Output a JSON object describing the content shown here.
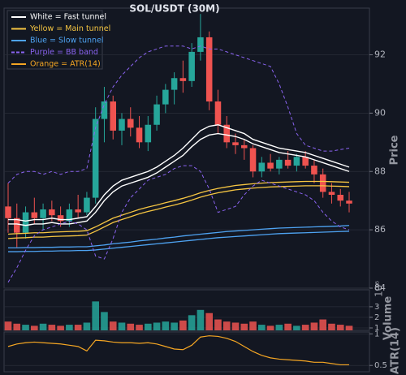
{
  "chart_data": [
    {
      "type": "candlestick",
      "title": "SOL/USDT (30M)",
      "ylabel": "Price",
      "ylim": [
        84,
        93.6
      ],
      "yticks": [
        84,
        86,
        88,
        90,
        92
      ],
      "grid": true,
      "up_color": "#26a69a",
      "down_color": "#ef5350",
      "open": [
        86.8,
        86.4,
        85.9,
        86.6,
        86.4,
        86.7,
        86.5,
        86.3,
        86.7,
        86.6,
        87.1,
        89.8,
        90.4,
        89.4,
        89.8,
        89.5,
        89.0,
        89.6,
        90.3,
        90.8,
        91.2,
        91.1,
        92.1,
        92.6,
        90.4,
        89.6,
        89.0,
        88.9,
        88.8,
        88.0,
        88.3,
        88.1,
        88.4,
        88.2,
        88.5,
        88.2,
        87.9,
        87.3,
        87.2,
        87.0
      ],
      "high": [
        87.6,
        86.9,
        86.8,
        87.1,
        86.9,
        87.0,
        86.8,
        86.9,
        87.2,
        87.3,
        90.2,
        90.9,
        90.6,
        90.0,
        90.2,
        89.9,
        89.9,
        90.6,
        91.0,
        91.4,
        91.8,
        92.4,
        93.4,
        92.8,
        90.8,
        89.9,
        89.3,
        89.1,
        88.9,
        88.5,
        88.6,
        88.5,
        88.7,
        88.6,
        88.7,
        88.4,
        88.1,
        87.6,
        87.4,
        87.3
      ],
      "low": [
        85.9,
        85.4,
        85.7,
        86.2,
        86.0,
        86.3,
        86.1,
        86.1,
        86.4,
        86.5,
        86.9,
        89.0,
        89.1,
        88.9,
        89.2,
        88.8,
        88.7,
        89.4,
        90.0,
        90.3,
        90.7,
        90.9,
        91.8,
        90.1,
        89.3,
        88.8,
        88.6,
        88.4,
        87.8,
        87.8,
        88.0,
        87.9,
        88.1,
        88.0,
        88.1,
        87.6,
        87.1,
        86.9,
        86.8,
        86.6
      ],
      "close": [
        86.4,
        85.9,
        86.6,
        86.4,
        86.7,
        86.5,
        86.3,
        86.7,
        86.6,
        87.1,
        89.8,
        90.4,
        89.4,
        89.8,
        89.5,
        89.0,
        89.6,
        90.3,
        90.8,
        91.2,
        91.1,
        92.1,
        92.6,
        90.4,
        89.6,
        89.0,
        88.9,
        88.8,
        88.0,
        88.3,
        88.1,
        88.4,
        88.2,
        88.5,
        88.2,
        87.9,
        87.3,
        87.2,
        87.0,
        86.9
      ],
      "lines": [
        {
          "color": "#ffffff",
          "width": 1.4,
          "values": [
            86.35,
            86.35,
            86.3,
            86.35,
            86.35,
            86.4,
            86.35,
            86.35,
            86.4,
            86.45,
            86.8,
            87.2,
            87.5,
            87.7,
            87.8,
            87.9,
            88.0,
            88.15,
            88.35,
            88.55,
            88.8,
            89.1,
            89.4,
            89.55,
            89.6,
            89.5,
            89.4,
            89.3,
            89.1,
            89.0,
            88.9,
            88.8,
            88.75,
            88.7,
            88.65,
            88.55,
            88.45,
            88.35,
            88.25,
            88.15
          ]
        },
        {
          "color": "#ffffff",
          "width": 1.4,
          "values": [
            86.2,
            86.2,
            86.15,
            86.2,
            86.2,
            86.25,
            86.2,
            86.2,
            86.25,
            86.3,
            86.6,
            87.0,
            87.3,
            87.5,
            87.6,
            87.7,
            87.8,
            87.95,
            88.15,
            88.35,
            88.55,
            88.85,
            89.1,
            89.25,
            89.3,
            89.25,
            89.2,
            89.1,
            88.95,
            88.85,
            88.75,
            88.65,
            88.6,
            88.55,
            88.5,
            88.4,
            88.3,
            88.2,
            88.1,
            88.0
          ]
        },
        {
          "color": "#f5c542",
          "width": 1.3,
          "values": [
            85.85,
            85.87,
            85.88,
            85.9,
            85.9,
            85.92,
            85.93,
            85.94,
            85.95,
            85.97,
            86.1,
            86.25,
            86.4,
            86.5,
            86.6,
            86.7,
            86.78,
            86.85,
            86.93,
            87.0,
            87.08,
            87.17,
            87.27,
            87.35,
            87.42,
            87.47,
            87.52,
            87.55,
            87.58,
            87.6,
            87.62,
            87.63,
            87.64,
            87.65,
            87.66,
            87.66,
            87.66,
            87.65,
            87.64,
            87.63
          ]
        },
        {
          "color": "#f5c542",
          "width": 1.3,
          "values": [
            85.7,
            85.72,
            85.73,
            85.75,
            85.75,
            85.77,
            85.78,
            85.79,
            85.8,
            85.82,
            85.95,
            86.1,
            86.25,
            86.35,
            86.45,
            86.55,
            86.63,
            86.7,
            86.78,
            86.85,
            86.93,
            87.02,
            87.12,
            87.2,
            87.27,
            87.32,
            87.37,
            87.4,
            87.43,
            87.45,
            87.47,
            87.48,
            87.49,
            87.5,
            87.51,
            87.51,
            87.51,
            87.5,
            87.49,
            87.48
          ]
        },
        {
          "color": "#4ea3f2",
          "width": 1.3,
          "values": [
            85.38,
            85.38,
            85.39,
            85.39,
            85.4,
            85.4,
            85.41,
            85.41,
            85.42,
            85.42,
            85.45,
            85.48,
            85.52,
            85.55,
            85.58,
            85.62,
            85.65,
            85.68,
            85.72,
            85.75,
            85.79,
            85.82,
            85.85,
            85.88,
            85.91,
            85.94,
            85.96,
            85.98,
            86.0,
            86.02,
            86.04,
            86.06,
            86.07,
            86.08,
            86.09,
            86.1,
            86.11,
            86.12,
            86.13,
            86.15
          ]
        },
        {
          "color": "#4ea3f2",
          "width": 1.3,
          "values": [
            85.25,
            85.25,
            85.26,
            85.26,
            85.27,
            85.27,
            85.28,
            85.28,
            85.29,
            85.29,
            85.31,
            85.34,
            85.37,
            85.4,
            85.43,
            85.46,
            85.49,
            85.52,
            85.55,
            85.58,
            85.61,
            85.64,
            85.67,
            85.7,
            85.73,
            85.75,
            85.77,
            85.79,
            85.81,
            85.83,
            85.85,
            85.87,
            85.88,
            85.89,
            85.9,
            85.91,
            85.92,
            85.93,
            85.94,
            85.95
          ]
        },
        {
          "color": "#8a63f0",
          "width": 1,
          "dash": true,
          "values": [
            87.6,
            87.9,
            88.0,
            88.0,
            87.9,
            88.0,
            87.9,
            88.0,
            88.0,
            88.1,
            89.5,
            90.3,
            90.9,
            91.3,
            91.6,
            91.9,
            92.1,
            92.2,
            92.3,
            92.3,
            92.3,
            92.2,
            92.3,
            92.2,
            92.2,
            92.1,
            92.0,
            91.9,
            91.8,
            91.7,
            91.6,
            91.0,
            90.2,
            89.3,
            88.9,
            88.8,
            88.7,
            88.7,
            88.75,
            88.8
          ]
        },
        {
          "color": "#8a63f0",
          "width": 1,
          "dash": true,
          "values": [
            84.2,
            84.7,
            85.3,
            85.8,
            86.0,
            86.1,
            86.2,
            86.3,
            86.2,
            86.0,
            85.1,
            85.0,
            85.7,
            86.6,
            87.1,
            87.4,
            87.7,
            87.8,
            87.9,
            88.1,
            88.2,
            88.2,
            88.0,
            87.4,
            86.6,
            86.7,
            86.8,
            87.2,
            87.5,
            87.7,
            87.6,
            87.5,
            87.4,
            87.3,
            87.2,
            87.0,
            86.6,
            86.3,
            86.1,
            86.0
          ]
        }
      ],
      "legend": [
        {
          "label": "White = Fast tunnel",
          "color": "#ffffff"
        },
        {
          "label": "Yellow = Main tunnel",
          "color": "#f5c542"
        },
        {
          "label": "Blue = Slow tunnel",
          "color": "#4ea3f2"
        },
        {
          "label": "Purple = BB band",
          "color": "#8a63f0",
          "dash": true
        },
        {
          "label": "Orange = ATR(14)",
          "color": "#f5a623"
        }
      ]
    },
    {
      "type": "bar",
      "ylabel": "Volume",
      "offset_label": "10⁶",
      "ylim": [
        0.77,
        4.6
      ],
      "yticks": [
        1,
        2,
        3
      ],
      "grid": true,
      "values": [
        1.6,
        1.4,
        1.3,
        1.2,
        1.4,
        1.3,
        1.2,
        1.3,
        1.3,
        1.5,
        3.5,
        2.5,
        1.6,
        1.5,
        1.4,
        1.3,
        1.4,
        1.5,
        1.6,
        1.5,
        1.7,
        2.2,
        2.7,
        2.4,
        1.8,
        1.6,
        1.5,
        1.4,
        1.6,
        1.3,
        1.2,
        1.3,
        1.4,
        1.2,
        1.3,
        1.5,
        1.8,
        1.4,
        1.3,
        1.2
      ]
    },
    {
      "type": "line",
      "ylabel": "ATR(14)",
      "color": "#f5a623",
      "ylim": [
        0.4,
        1.03
      ],
      "yticks": [
        0.5,
        1
      ],
      "grid": true,
      "values": [
        0.8,
        0.84,
        0.86,
        0.87,
        0.86,
        0.85,
        0.84,
        0.82,
        0.8,
        0.73,
        0.9,
        0.89,
        0.87,
        0.86,
        0.86,
        0.85,
        0.86,
        0.84,
        0.8,
        0.76,
        0.75,
        0.82,
        0.95,
        0.97,
        0.96,
        0.93,
        0.88,
        0.8,
        0.72,
        0.66,
        0.62,
        0.6,
        0.59,
        0.58,
        0.57,
        0.55,
        0.55,
        0.53,
        0.51,
        0.51
      ]
    }
  ]
}
